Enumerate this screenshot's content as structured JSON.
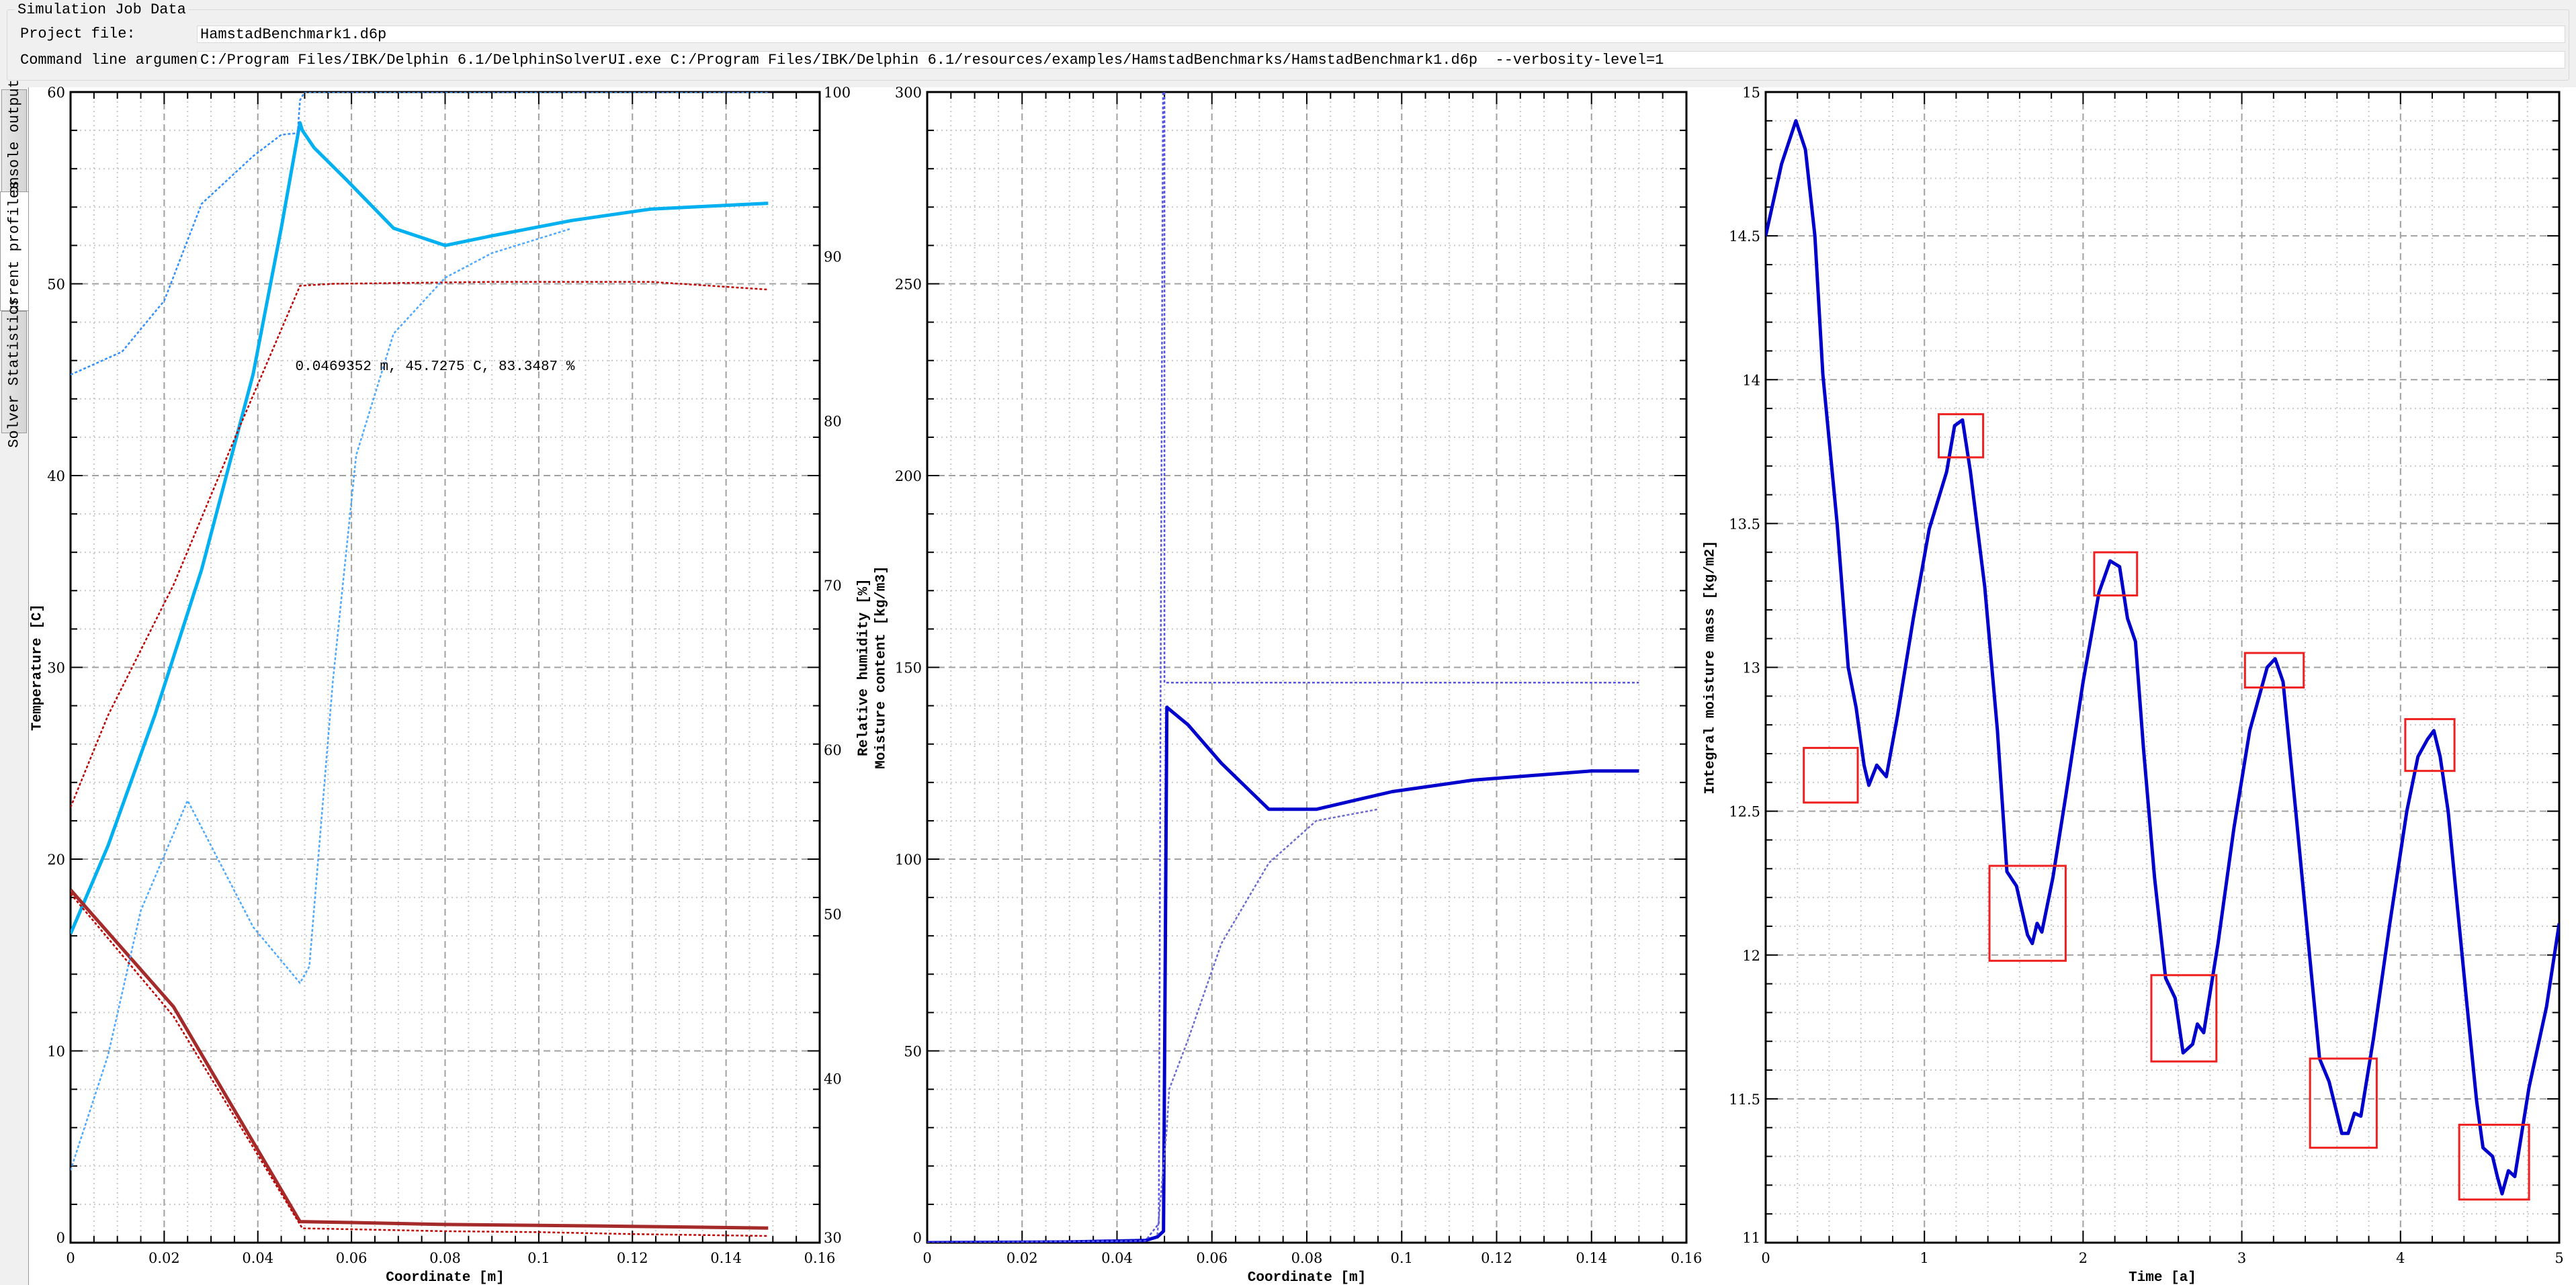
{
  "job": {
    "title": "Simulation Job Data",
    "project_file_label": "Project file:",
    "project_file": "HamstadBenchmark1.d6p",
    "cmd_label": "Command line arguments:",
    "cmd": "C:/Program Files/IBK/Delphin 6.1/DelphinSolverUI.exe C:/Program Files/IBK/Delphin 6.1/resources/examples/HamstadBenchmarks/HamstadBenchmark1.d6p  --verbosity-level=1"
  },
  "tabs": [
    {
      "label": "Console output",
      "selected": false
    },
    {
      "label": "Current profiles",
      "selected": true
    },
    {
      "label": "Solver Statistics",
      "selected": false
    }
  ],
  "chart_data": [
    {
      "type": "line",
      "xlabel": "Coordinate [m]",
      "ylabel": "Temperature [C]",
      "y2label": "Relative humidity [%]",
      "xlim": [
        0,
        0.16
      ],
      "ylim": [
        0,
        60
      ],
      "y2lim": [
        30,
        100
      ],
      "xticks": [
        "0",
        "0.02",
        "0.04",
        "0.06",
        "0.08",
        "0.1",
        "0.12",
        "0.14",
        "0.16"
      ],
      "yticks": [
        "0",
        "10",
        "20",
        "30",
        "40",
        "50",
        "60"
      ],
      "y2ticks": [
        "30",
        "40",
        "50",
        "60",
        "70",
        "80",
        "90",
        "100"
      ],
      "grid": true,
      "annotation": {
        "text": "0.0469352 m, 45.7275 C, 83.3487 %",
        "x": 0.048,
        "y": 45.5
      },
      "series": [
        {
          "axis": "y",
          "color": "#00b0f0",
          "style": "solid",
          "weight": "thick",
          "x": [
            0,
            0.008,
            0.018,
            0.028,
            0.039,
            0.045,
            0.049,
            0.0495,
            0.052,
            0.059,
            0.069,
            0.08,
            0.09,
            0.107,
            0.124,
            0.149
          ],
          "y": [
            16.1,
            20.7,
            27.5,
            35.1,
            45.3,
            52.9,
            58.4,
            58.0,
            57.1,
            55.4,
            52.9,
            52.0,
            52.5,
            53.3,
            53.9,
            54.2
          ]
        },
        {
          "axis": "y",
          "color": "#c00000",
          "style": "dotted",
          "weight": "thin",
          "x": [
            0,
            0.008,
            0.022,
            0.035,
            0.049,
            0.056,
            0.09,
            0.124,
            0.149
          ],
          "y": [
            22.7,
            27.5,
            34.3,
            41.9,
            49.9,
            50.0,
            50.1,
            50.1,
            49.7
          ]
        },
        {
          "axis": "y",
          "color": "#a52a2a",
          "style": "solid",
          "weight": "thick",
          "x": [
            0,
            0.022,
            0.049,
            0.06,
            0.08,
            0.1,
            0.12,
            0.149
          ],
          "y": [
            18.4,
            12.3,
            1.1,
            1.05,
            0.95,
            0.9,
            0.85,
            0.76
          ]
        },
        {
          "axis": "y",
          "color": "#c00000",
          "style": "dotted",
          "weight": "thin",
          "x": [
            0,
            0.022,
            0.0495,
            0.06,
            0.08,
            0.1,
            0.12,
            0.149
          ],
          "y": [
            18.2,
            11.8,
            0.75,
            0.7,
            0.6,
            0.55,
            0.45,
            0.35
          ]
        },
        {
          "axis": "y2",
          "color": "#2f8fff",
          "style": "dotted",
          "weight": "thin",
          "x": [
            0,
            0.011,
            0.02,
            0.028,
            0.039,
            0.045,
            0.0485,
            0.049,
            0.05,
            0.09,
            0.149
          ],
          "y": [
            82.8,
            84.2,
            87.3,
            93.2,
            96.1,
            97.4,
            97.5,
            99.5,
            100,
            100,
            100
          ]
        },
        {
          "axis": "y2",
          "color": "#4aa8ff",
          "style": "dotted",
          "weight": "thin",
          "x": [
            0,
            0.008,
            0.015,
            0.025,
            0.039,
            0.049,
            0.051,
            0.056,
            0.061,
            0.069,
            0.08,
            0.09,
            0.107
          ],
          "y": [
            34.4,
            41.4,
            50.2,
            56.9,
            49.2,
            45.8,
            46.8,
            64.1,
            77.9,
            85.3,
            88.7,
            90.2,
            91.7
          ]
        }
      ]
    },
    {
      "type": "line",
      "xlabel": "Coordinate [m]",
      "ylabel": "Moisture content [kg/m3]",
      "xlim": [
        0,
        0.16
      ],
      "ylim": [
        0,
        300
      ],
      "xticks": [
        "0",
        "0.02",
        "0.04",
        "0.06",
        "0.08",
        "0.1",
        "0.12",
        "0.14",
        "0.16"
      ],
      "yticks": [
        "0",
        "50",
        "100",
        "150",
        "200",
        "250",
        "300"
      ],
      "grid": true,
      "series": [
        {
          "axis": "y",
          "color": "#0000cc",
          "style": "solid",
          "weight": "thick",
          "x": [
            0,
            0.03,
            0.046,
            0.0485,
            0.0498,
            0.0505,
            0.055,
            0.062,
            0.072,
            0.082,
            0.098,
            0.115,
            0.14,
            0.15
          ],
          "y": [
            0,
            0.2,
            0.6,
            1.5,
            3,
            139.6,
            135,
            125,
            113,
            113,
            117.6,
            120.6,
            123,
            123
          ]
        },
        {
          "axis": "y",
          "color": "#5555dd",
          "style": "dotted",
          "weight": "thin",
          "x": [
            0,
            0.046,
            0.0488,
            0.0492,
            0.0497,
            0.05,
            0.05,
            0.15
          ],
          "y": [
            0,
            0.5,
            5,
            150,
            300,
            300,
            146,
            146
          ]
        },
        {
          "axis": "y",
          "color": "#6a6ad0",
          "style": "dotted",
          "weight": "thin",
          "x": [
            0.0485,
            0.0505,
            0.051,
            0.055,
            0.062,
            0.072,
            0.082,
            0.095
          ],
          "y": [
            2,
            30,
            40,
            53,
            78,
            99,
            110,
            113
          ]
        }
      ]
    },
    {
      "type": "line",
      "xlabel": "Time [a]",
      "ylabel": "Integral moisture mass [kg/m2]",
      "xlim": [
        0,
        5
      ],
      "ylim": [
        11,
        15
      ],
      "xticks": [
        "0",
        "1",
        "2",
        "3",
        "4",
        "5"
      ],
      "yticks": [
        "11",
        "11.5",
        "12",
        "12.5",
        "13",
        "13.5",
        "14",
        "14.5",
        "15"
      ],
      "grid": true,
      "series": [
        {
          "axis": "y",
          "color": "#0000cc",
          "style": "solid",
          "weight": "thick",
          "x": [
            0,
            0.1,
            0.19,
            0.25,
            0.31,
            0.36,
            0.45,
            0.52,
            0.57,
            0.62,
            0.65,
            0.7,
            0.76,
            0.83,
            0.93,
            1.03,
            1.14,
            1.19,
            1.24,
            1.29,
            1.38,
            1.46,
            1.52,
            1.58,
            1.65,
            1.68,
            1.71,
            1.74,
            1.81,
            1.89,
            2.0,
            2.1,
            2.17,
            2.23,
            2.28,
            2.33,
            2.38,
            2.45,
            2.52,
            2.58,
            2.63,
            2.69,
            2.72,
            2.76,
            2.85,
            2.95,
            3.05,
            3.16,
            3.21,
            3.26,
            3.34,
            3.42,
            3.49,
            3.55,
            3.59,
            3.63,
            3.67,
            3.71,
            3.75,
            3.83,
            3.93,
            4.04,
            4.11,
            4.17,
            4.21,
            4.25,
            4.3,
            4.36,
            4.42,
            4.48,
            4.52,
            4.58,
            4.61,
            4.64,
            4.68,
            4.72,
            4.81,
            4.92,
            5.0
          ],
          "y": [
            14.5,
            14.75,
            14.9,
            14.8,
            14.5,
            14.02,
            13.5,
            13.0,
            12.86,
            12.66,
            12.59,
            12.66,
            12.62,
            12.83,
            13.17,
            13.48,
            13.68,
            13.84,
            13.86,
            13.68,
            13.28,
            12.78,
            12.29,
            12.24,
            12.07,
            12.04,
            12.11,
            12.08,
            12.27,
            12.55,
            12.95,
            13.26,
            13.37,
            13.35,
            13.17,
            13.09,
            12.72,
            12.27,
            11.92,
            11.85,
            11.66,
            11.69,
            11.76,
            11.73,
            12.04,
            12.44,
            12.78,
            13.0,
            13.03,
            12.95,
            12.5,
            12.04,
            11.64,
            11.56,
            11.47,
            11.38,
            11.38,
            11.45,
            11.44,
            11.71,
            12.1,
            12.5,
            12.69,
            12.75,
            12.78,
            12.69,
            12.5,
            12.16,
            11.82,
            11.49,
            11.33,
            11.3,
            11.23,
            11.17,
            11.25,
            11.23,
            11.54,
            11.82,
            12.11
          ]
        }
      ],
      "highlight_color": "#ee2020",
      "highlight_boxes": [
        {
          "x": [
            0.24,
            0.58
          ],
          "y": [
            12.53,
            12.72
          ]
        },
        {
          "x": [
            1.09,
            1.37
          ],
          "y": [
            13.73,
            13.88
          ]
        },
        {
          "x": [
            1.41,
            1.89
          ],
          "y": [
            11.98,
            12.31
          ]
        },
        {
          "x": [
            2.07,
            2.34
          ],
          "y": [
            13.25,
            13.4
          ]
        },
        {
          "x": [
            2.43,
            2.84
          ],
          "y": [
            11.63,
            11.93
          ]
        },
        {
          "x": [
            3.02,
            3.39
          ],
          "y": [
            12.93,
            13.05
          ]
        },
        {
          "x": [
            3.43,
            3.85
          ],
          "y": [
            11.33,
            11.64
          ]
        },
        {
          "x": [
            4.03,
            4.34
          ],
          "y": [
            12.64,
            12.82
          ]
        },
        {
          "x": [
            4.37,
            4.81
          ],
          "y": [
            11.15,
            11.41
          ]
        }
      ]
    }
  ]
}
